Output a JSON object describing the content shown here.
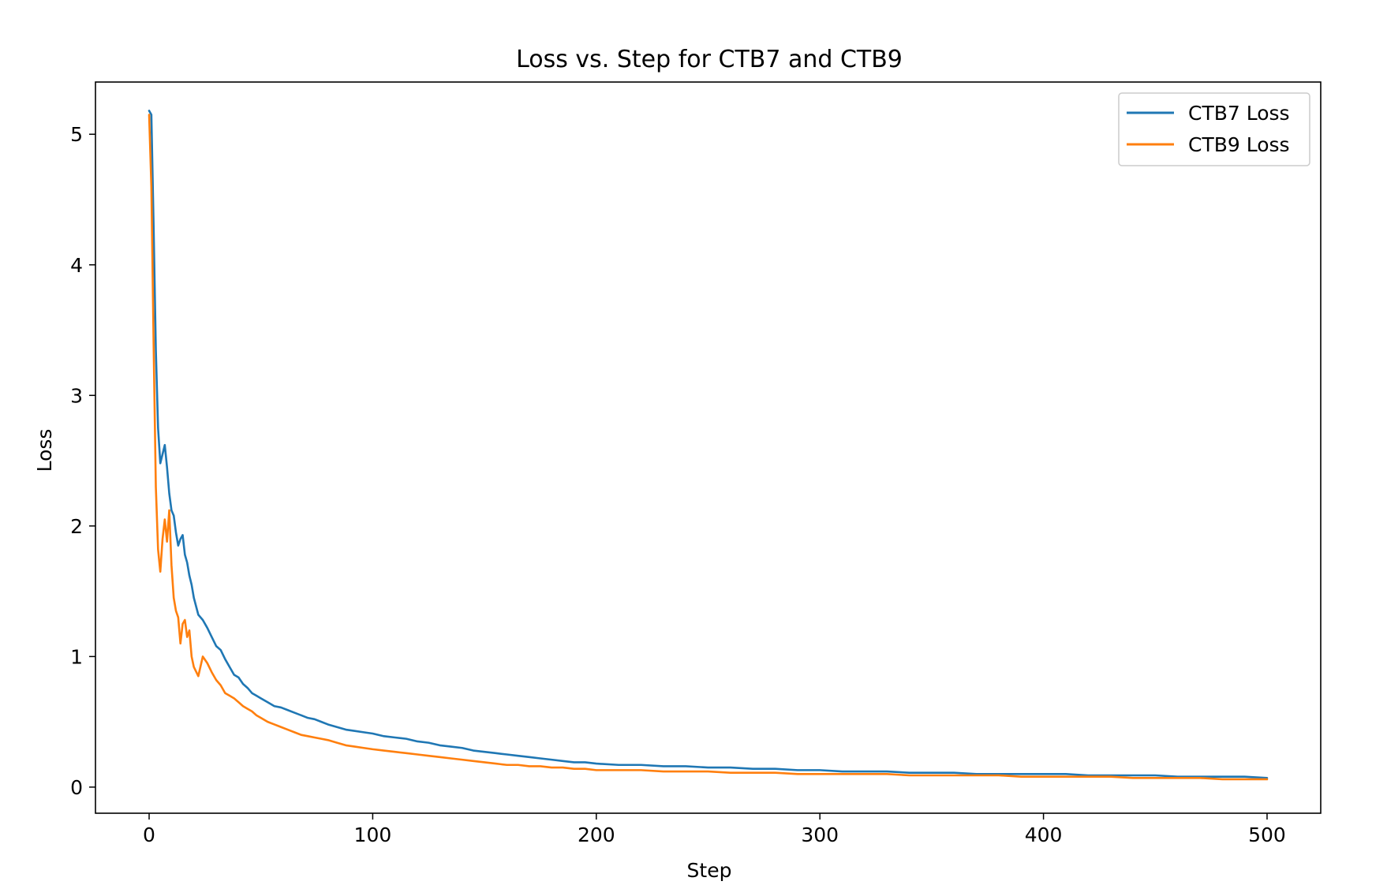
{
  "chart_data": {
    "type": "line",
    "title": "Loss vs. Step for CTB7 and CTB9",
    "xlabel": "Step",
    "ylabel": "Loss",
    "xlim": [
      -24,
      524
    ],
    "ylim": [
      -0.2,
      5.4
    ],
    "xticks": [
      0,
      100,
      200,
      300,
      400,
      500
    ],
    "yticks": [
      0,
      1,
      2,
      3,
      4,
      5
    ],
    "grid": false,
    "legend_position": "top-right",
    "series": [
      {
        "name": "CTB7 Loss",
        "color": "#1f77b4",
        "x": [
          0,
          1,
          2,
          3,
          4,
          5,
          6,
          7,
          8,
          9,
          10,
          11,
          12,
          13,
          14,
          15,
          16,
          17,
          18,
          19,
          20,
          22,
          24,
          26,
          28,
          30,
          32,
          34,
          36,
          38,
          40,
          42,
          44,
          46,
          48,
          50,
          53,
          56,
          59,
          62,
          65,
          68,
          71,
          74,
          77,
          80,
          84,
          88,
          92,
          96,
          100,
          105,
          110,
          115,
          120,
          125,
          130,
          135,
          140,
          145,
          150,
          155,
          160,
          165,
          170,
          175,
          180,
          185,
          190,
          195,
          200,
          210,
          220,
          230,
          240,
          250,
          260,
          270,
          280,
          290,
          300,
          310,
          320,
          330,
          340,
          350,
          360,
          370,
          380,
          390,
          400,
          410,
          420,
          430,
          440,
          450,
          460,
          470,
          480,
          490,
          500
        ],
        "values": [
          5.18,
          5.15,
          4.3,
          3.35,
          2.75,
          2.48,
          2.55,
          2.62,
          2.45,
          2.25,
          2.12,
          2.08,
          1.95,
          1.85,
          1.9,
          1.93,
          1.78,
          1.72,
          1.62,
          1.55,
          1.45,
          1.32,
          1.28,
          1.22,
          1.15,
          1.08,
          1.05,
          0.98,
          0.92,
          0.86,
          0.84,
          0.79,
          0.76,
          0.72,
          0.7,
          0.68,
          0.65,
          0.62,
          0.61,
          0.59,
          0.57,
          0.55,
          0.53,
          0.52,
          0.5,
          0.48,
          0.46,
          0.44,
          0.43,
          0.42,
          0.41,
          0.39,
          0.38,
          0.37,
          0.35,
          0.34,
          0.32,
          0.31,
          0.3,
          0.28,
          0.27,
          0.26,
          0.25,
          0.24,
          0.23,
          0.22,
          0.21,
          0.2,
          0.19,
          0.19,
          0.18,
          0.17,
          0.17,
          0.16,
          0.16,
          0.15,
          0.15,
          0.14,
          0.14,
          0.13,
          0.13,
          0.12,
          0.12,
          0.12,
          0.11,
          0.11,
          0.11,
          0.1,
          0.1,
          0.1,
          0.1,
          0.1,
          0.09,
          0.09,
          0.09,
          0.09,
          0.08,
          0.08,
          0.08,
          0.08,
          0.07
        ]
      },
      {
        "name": "CTB9 Loss",
        "color": "#ff7f0e",
        "x": [
          0,
          1,
          2,
          3,
          4,
          5,
          6,
          7,
          8,
          9,
          10,
          11,
          12,
          13,
          14,
          15,
          16,
          17,
          18,
          19,
          20,
          22,
          24,
          26,
          28,
          30,
          32,
          34,
          36,
          38,
          40,
          42,
          44,
          46,
          48,
          50,
          53,
          56,
          59,
          62,
          65,
          68,
          71,
          74,
          77,
          80,
          84,
          88,
          92,
          96,
          100,
          105,
          110,
          115,
          120,
          125,
          130,
          135,
          140,
          145,
          150,
          155,
          160,
          165,
          170,
          175,
          180,
          185,
          190,
          195,
          200,
          210,
          220,
          230,
          240,
          250,
          260,
          270,
          280,
          290,
          300,
          310,
          320,
          330,
          340,
          350,
          360,
          370,
          380,
          390,
          400,
          410,
          420,
          430,
          440,
          450,
          460,
          470,
          480,
          490,
          500
        ],
        "values": [
          5.15,
          4.6,
          3.4,
          2.3,
          1.82,
          1.65,
          1.9,
          2.05,
          1.88,
          2.12,
          1.7,
          1.45,
          1.35,
          1.3,
          1.1,
          1.25,
          1.28,
          1.15,
          1.2,
          1.0,
          0.92,
          0.85,
          1.0,
          0.95,
          0.88,
          0.82,
          0.78,
          0.72,
          0.7,
          0.68,
          0.65,
          0.62,
          0.6,
          0.58,
          0.55,
          0.53,
          0.5,
          0.48,
          0.46,
          0.44,
          0.42,
          0.4,
          0.39,
          0.38,
          0.37,
          0.36,
          0.34,
          0.32,
          0.31,
          0.3,
          0.29,
          0.28,
          0.27,
          0.26,
          0.25,
          0.24,
          0.23,
          0.22,
          0.21,
          0.2,
          0.19,
          0.18,
          0.17,
          0.17,
          0.16,
          0.16,
          0.15,
          0.15,
          0.14,
          0.14,
          0.13,
          0.13,
          0.13,
          0.12,
          0.12,
          0.12,
          0.11,
          0.11,
          0.11,
          0.1,
          0.1,
          0.1,
          0.1,
          0.1,
          0.09,
          0.09,
          0.09,
          0.09,
          0.09,
          0.08,
          0.08,
          0.08,
          0.08,
          0.08,
          0.07,
          0.07,
          0.07,
          0.07,
          0.06,
          0.06,
          0.06
        ]
      }
    ]
  }
}
